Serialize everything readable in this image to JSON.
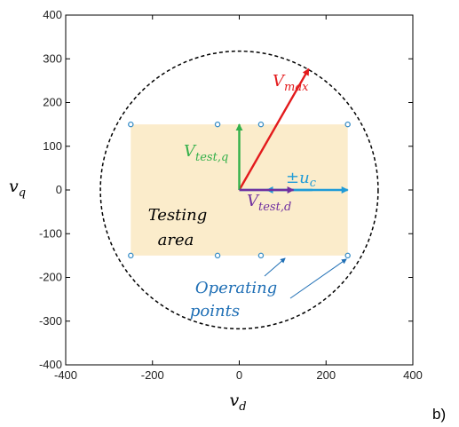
{
  "panel_label": "b)",
  "chart_data": {
    "type": "scatter",
    "title": "",
    "xlabel": "v",
    "xlabel_sub": "d",
    "ylabel": "v",
    "ylabel_sub": "q",
    "xlim": [
      -400,
      400
    ],
    "ylim": [
      -400,
      400
    ],
    "xticks": [
      -400,
      -200,
      0,
      200,
      400
    ],
    "yticks": [
      -400,
      -300,
      -200,
      -100,
      0,
      100,
      200,
      300,
      400
    ],
    "grid": false,
    "testing_area": {
      "x": [
        -250,
        250
      ],
      "y": [
        -150,
        150
      ],
      "color": "#fbeccb",
      "label_line1": "Testing",
      "label_line2": "area"
    },
    "voltage_limit_circle": {
      "center": [
        0,
        0
      ],
      "radius": 320,
      "style": "dashed"
    },
    "operating_points": {
      "x": [
        -250,
        -50,
        50,
        250,
        -250,
        -50,
        50,
        250
      ],
      "y": [
        150,
        150,
        150,
        150,
        -150,
        -150,
        -150,
        -150
      ],
      "color": "#3a8fc8",
      "label_line1": "Operating",
      "label_line2": "points"
    },
    "vectors": [
      {
        "name": "V",
        "subscript": "max",
        "from": [
          0,
          0
        ],
        "to": [
          160,
          277
        ],
        "color": "#e31a1c"
      },
      {
        "name": "V",
        "subscript": "test,q",
        "from": [
          0,
          0
        ],
        "to": [
          0,
          150
        ],
        "color": "#33b04a"
      },
      {
        "name": "V",
        "subscript": "test,d",
        "from": [
          0,
          0
        ],
        "to": [
          125,
          0
        ],
        "color": "#7030a0"
      }
    ],
    "injection": {
      "label": "±u",
      "subscript": "c",
      "center": [
        0,
        0
      ],
      "half_width": 250,
      "color": "#1f9bd7"
    }
  }
}
